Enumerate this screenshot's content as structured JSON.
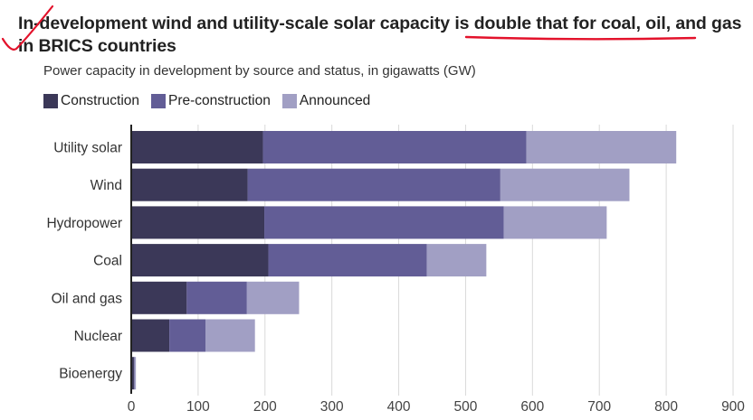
{
  "chart_data": {
    "type": "bar",
    "orientation": "horizontal",
    "stacked": true,
    "title": "In-development wind and utility-scale solar capacity is double that for coal, oil, and gas in BRICS countries",
    "subtitle": "Power capacity in development by source and status, in gigawatts (GW)",
    "xlabel": "",
    "ylabel": "",
    "xlim": [
      0,
      900
    ],
    "x_ticks": [
      0,
      100,
      200,
      300,
      400,
      500,
      600,
      700,
      800,
      900
    ],
    "grid": "vertical",
    "legend_position": "top-left",
    "categories": [
      "Utility solar",
      "Wind",
      "Hydropower",
      "Coal",
      "Oil and gas",
      "Nuclear",
      "Bioenergy"
    ],
    "series": [
      {
        "name": "Construction",
        "color": "#3b3858",
        "values": [
          197,
          174,
          199,
          205,
          83,
          57,
          4
        ]
      },
      {
        "name": "Pre-construction",
        "color": "#625d96",
        "values": [
          394,
          378,
          358,
          237,
          90,
          54,
          1
        ]
      },
      {
        "name": "Announced",
        "color": "#a19fc4",
        "values": [
          224,
          193,
          154,
          89,
          78,
          74,
          2
        ]
      }
    ],
    "annotations": [
      "red-checkmark",
      "red-underline"
    ]
  },
  "colors": {
    "axis": "#222222",
    "grid": "#d9d9d9",
    "annotation": "#e3122b"
  }
}
